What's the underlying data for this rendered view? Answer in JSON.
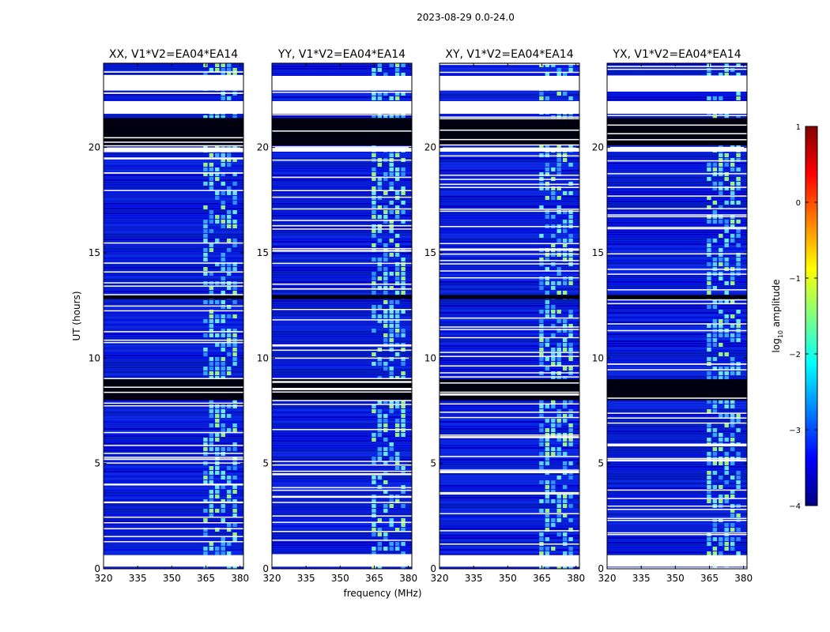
{
  "chart_data": {
    "type": "heatmap",
    "suptitle": "2023-08-29 0.0-24.0",
    "xlabel": "frequency (MHz)",
    "ylabel": "UT (hours)",
    "xlim": [
      320,
      381.5
    ],
    "ylim": [
      0,
      24
    ],
    "xticks": [
      320,
      335,
      350,
      365,
      380
    ],
    "yticks": [
      0,
      5,
      10,
      15,
      20
    ],
    "panels": [
      {
        "title": "XX, V1*V2=EA04*EA14"
      },
      {
        "title": "YY, V1*V2=EA04*EA14"
      },
      {
        "title": "XY, V1*V2=EA04*EA14"
      },
      {
        "title": "YX, V1*V2=EA04*EA14"
      }
    ],
    "rfi_band_mhz": [
      363.5,
      379
    ],
    "blank_rows_hours": [
      [
        0.1,
        0.65
      ],
      [
        19.8,
        20.0
      ],
      [
        21.6,
        22.2
      ],
      [
        22.7,
        23.4
      ]
    ],
    "black_rows_hours": [
      [
        20.1,
        21.4
      ],
      [
        12.8,
        13.0
      ],
      [
        8.0,
        9.0
      ]
    ],
    "colorbar": {
      "label_prefix": "log",
      "label_sub": "10",
      "label_suffix": " amplitude",
      "range": [
        -4,
        1
      ],
      "ticks": [
        "1",
        "0",
        "−1",
        "−2",
        "−3",
        "−4"
      ],
      "colors": [
        "#000080",
        "#0000ff",
        "#0080ff",
        "#00ffff",
        "#80ff80",
        "#ffff00",
        "#ff8000",
        "#ff0000",
        "#800000"
      ]
    }
  }
}
